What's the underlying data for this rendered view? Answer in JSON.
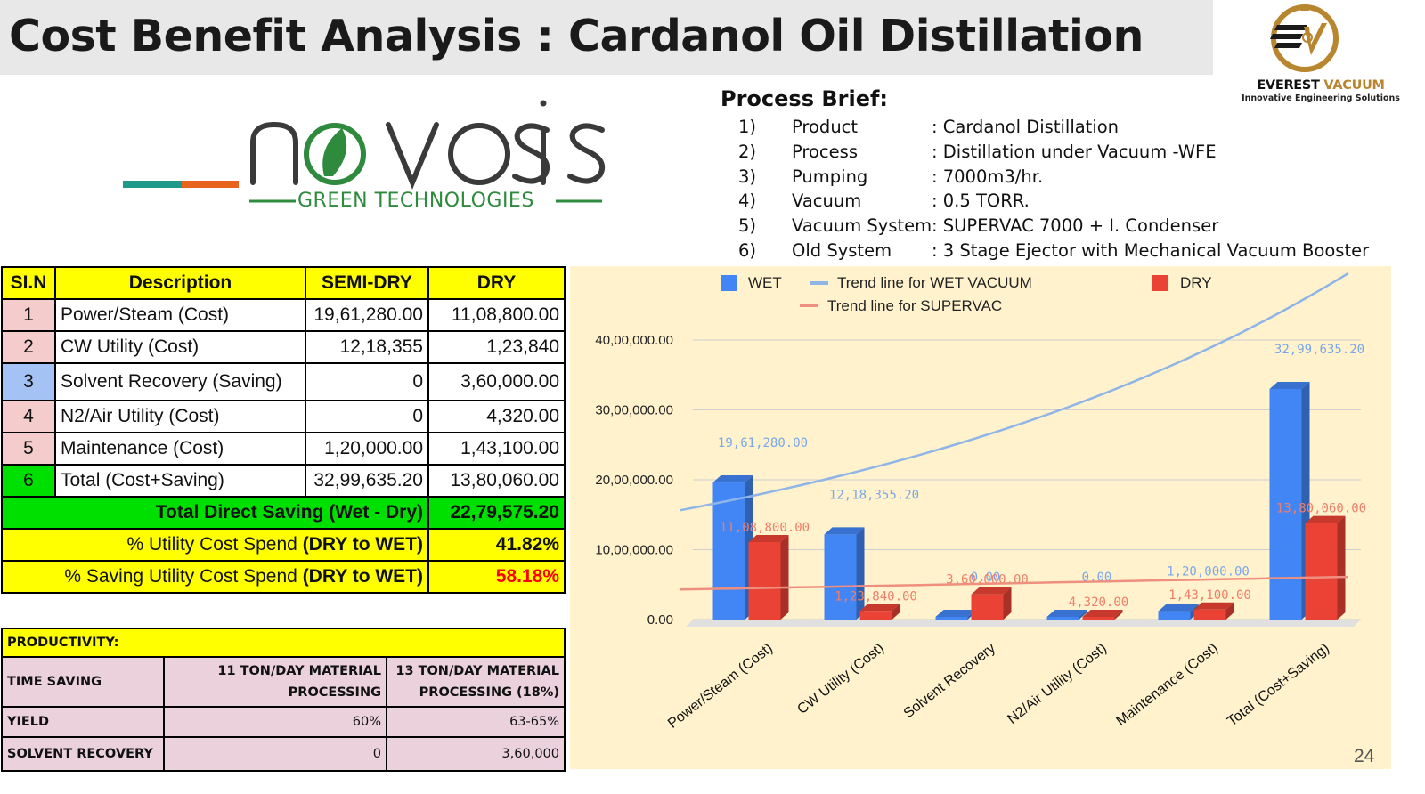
{
  "title": "Cost Benefit Analysis : Cardanol Oil Distillation",
  "logo_everest": {
    "name_a": "EVEREST",
    "name_b": "VACUUM",
    "tagline": "Innovative Engineering Solutions"
  },
  "logo_novosis": {
    "name": "novosis",
    "tagline": "GREEN TECHNOLOGIES"
  },
  "process_brief": {
    "title": "Process Brief:",
    "items": [
      {
        "no": "1)",
        "key": "Product",
        "value": ": Cardanol Distillation"
      },
      {
        "no": "2)",
        "key": "Process",
        "value": ": Distillation under Vacuum -WFE"
      },
      {
        "no": "3)",
        "key": "Pumping",
        "value": ": 7000m3/hr."
      },
      {
        "no": "4)",
        "key": "Vacuum",
        "value": ": 0.5 TORR."
      },
      {
        "no": "5)",
        "key": "Vacuum System",
        "value": ": SUPERVAC 7000 + I. Condenser"
      },
      {
        "no": "6)",
        "key": "Old System",
        "value": ": 3 Stage Ejector with Mechanical Vacuum Booster"
      }
    ]
  },
  "cost_table": {
    "headers": [
      "SI.N",
      "Description",
      "SEMI-DRY",
      "DRY"
    ],
    "rows": [
      {
        "sl": "1",
        "desc": "Power/Steam (Cost)",
        "semi": "19,61,280.00",
        "dry": "11,08,800.00"
      },
      {
        "sl": "2",
        "desc": "CW Utility (Cost)",
        "semi": "12,18,355",
        "dry": "1,23,840"
      },
      {
        "sl": "3",
        "desc": "Solvent Recovery (Saving)",
        "semi": "0",
        "dry": "3,60,000.00"
      },
      {
        "sl": "4",
        "desc": "N2/Air Utility (Cost)",
        "semi": "0",
        "dry": "4,320.00"
      },
      {
        "sl": "5",
        "desc": "Maintenance (Cost)",
        "semi": "1,20,000.00",
        "dry": "1,43,100.00"
      },
      {
        "sl": "6",
        "desc": "Total (Cost+Saving)",
        "semi": "32,99,635.20",
        "dry": "13,80,060.00"
      }
    ],
    "total_saving": {
      "label": "Total Direct Saving (Wet - Dry)",
      "value": "22,79,575.20"
    },
    "utility_spend": {
      "label": "% Utility Cost Spend ",
      "label_bold": "(DRY to WET)",
      "value": "41.82%"
    },
    "saving_spend": {
      "label": "% Saving Utility Cost Spend ",
      "label_bold": "(DRY to WET)",
      "value": "58.18%"
    }
  },
  "productivity": {
    "heading": "PRODUCTIVITY:",
    "time_saving_label": "TIME SAVING",
    "col1_line1": "11 TON/DAY MATERIAL",
    "col1_line2": "PROCESSING",
    "col2_line1": "13 TON/DAY MATERIAL",
    "col2_line2": "PROCESSING (18%)",
    "rows": [
      {
        "label": "YIELD",
        "a": "60%",
        "b": "63-65%"
      },
      {
        "label": "SOLVENT RECOVERY",
        "a": "0",
        "b": "3,60,000"
      }
    ]
  },
  "page_number": "24",
  "chart_data": {
    "type": "bar",
    "categories": [
      "Power/Steam (Cost)",
      "CW Utility (Cost)",
      "Solvent Recovery",
      "N2/Air Utility (Cost)",
      "Maintenance  (Cost)",
      "Total (Cost+Saving)"
    ],
    "series": [
      {
        "name": "WET",
        "color": "#4285f4",
        "values": [
          1961280,
          1218355.2,
          0,
          0,
          120000,
          3299635.2
        ],
        "labels": [
          "19,61,280.00",
          "12,18,355.20",
          "0.00",
          "0.00",
          "1,20,000.00",
          "32,99,635.20"
        ]
      },
      {
        "name": "DRY",
        "color": "#ea4335",
        "values": [
          1108800,
          123840,
          360000,
          4320,
          143100,
          1380060
        ],
        "labels": [
          "11,08,800.00",
          "1,23,840.00",
          "3,60,000.00",
          "4,320.00",
          "1,43,100.00",
          "13,80,060.00"
        ]
      }
    ],
    "trendlines": [
      {
        "name": "Trend line for WET VACUUM",
        "color": "#8fb4e8"
      },
      {
        "name": "Trend line for SUPERVAC",
        "color": "#ef8f7f"
      }
    ],
    "ylim": [
      0,
      4000000
    ],
    "yticks": [
      "0.00",
      "10,00,000.00",
      "20,00,000.00",
      "30,00,000.00",
      "40,00,000.00"
    ],
    "legend_position": "top",
    "grid": true
  }
}
